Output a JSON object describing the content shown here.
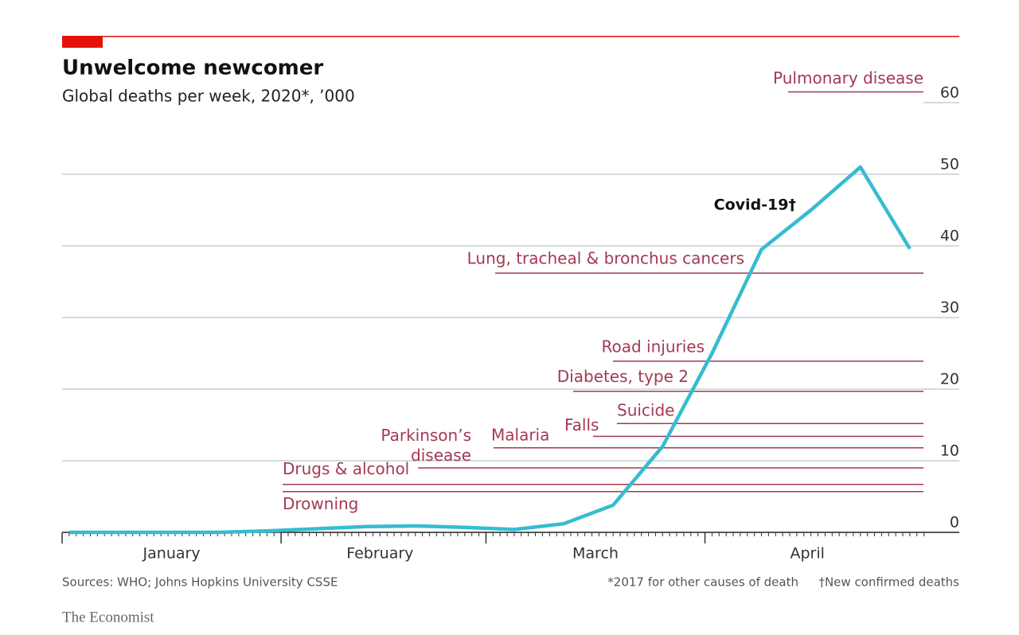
{
  "chart_data": {
    "type": "line",
    "title": "Unwelcome newcomer",
    "subtitle": "Global deaths per week, 2020*, ’000",
    "x": [
      1,
      8,
      15,
      22,
      29,
      36,
      43,
      50,
      57,
      64,
      71,
      78,
      85,
      92,
      99,
      106,
      113,
      120
    ],
    "series": [
      {
        "name": "Covid-19†",
        "color": "#36bcd0",
        "values": [
          0,
          0,
          0,
          0,
          0.2,
          0.5,
          0.8,
          0.9,
          0.7,
          0.4,
          1.2,
          3.8,
          12,
          25,
          39.5,
          45,
          51,
          39.6
        ]
      }
    ],
    "xlim": [
      0,
      127
    ],
    "xticks": [
      {
        "value": 15.5,
        "label": "January"
      },
      {
        "value": 45,
        "label": "February"
      },
      {
        "value": 75.5,
        "label": "March"
      },
      {
        "value": 105.5,
        "label": "April"
      }
    ],
    "month_starts": [
      0,
      31,
      60,
      91
    ],
    "ylim": [
      0,
      60
    ],
    "yticks": [
      0,
      10,
      20,
      30,
      40,
      50,
      60
    ],
    "grid": true,
    "reference_lines": [
      {
        "label": "Pulmonary disease",
        "value": 61.5
      },
      {
        "label": "Lung, tracheal & bronchus cancers",
        "value": 36.2
      },
      {
        "label": "Road injuries",
        "value": 23.9
      },
      {
        "label": "Diabetes, type 2",
        "value": 19.7
      },
      {
        "label": "Suicide",
        "value": 15.2
      },
      {
        "label": "Falls",
        "value": 13.4
      },
      {
        "label": "Malaria",
        "value": 11.8
      },
      {
        "label": "Parkinson’s disease",
        "value": 9.0
      },
      {
        "label": "Drugs & alcohol",
        "value": 6.7
      },
      {
        "label": "Drowning",
        "value": 5.7
      }
    ],
    "source": "Sources: WHO; Johns Hopkins University CSSE",
    "footnotes": [
      "*2017 for other causes of death",
      "†New confirmed deaths"
    ],
    "brand": "The Economist"
  }
}
